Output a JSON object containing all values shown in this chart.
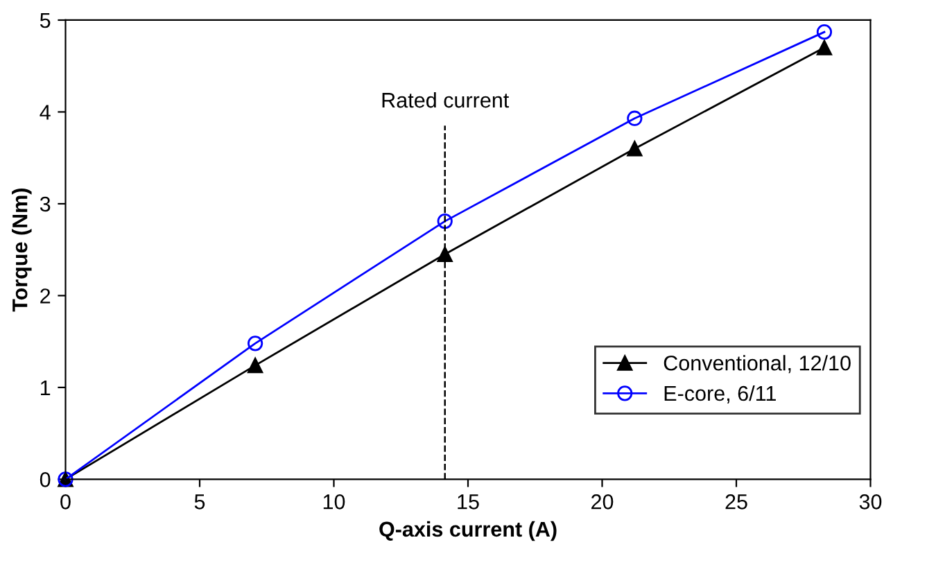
{
  "chart_data": {
    "type": "line",
    "xlabel": "Q-axis current (A)",
    "ylabel": "Torque (Nm)",
    "x": [
      0,
      7.07,
      14.14,
      21.21,
      28.28
    ],
    "series": [
      {
        "name": "Conventional, 12/10",
        "color": "#000000",
        "marker": "triangle",
        "values": [
          0,
          1.24,
          2.45,
          3.6,
          4.7
        ]
      },
      {
        "name": "E-core, 6/11",
        "color": "#0000ff",
        "marker": "circle",
        "values": [
          0,
          1.48,
          2.81,
          3.93,
          4.87
        ]
      }
    ],
    "xlim": [
      0,
      30
    ],
    "xticks": [
      0,
      5,
      10,
      15,
      20,
      25,
      30
    ],
    "ylim": [
      0,
      5
    ],
    "yticks": [
      0,
      1,
      2,
      3,
      4,
      5
    ],
    "ref_lines": [
      {
        "axis": "x",
        "value": 14.14,
        "label": "Rated current",
        "color": "#000000",
        "line_style": "dashed"
      }
    ],
    "grid": false,
    "legend": "bottom right",
    "line_style": "solid"
  }
}
